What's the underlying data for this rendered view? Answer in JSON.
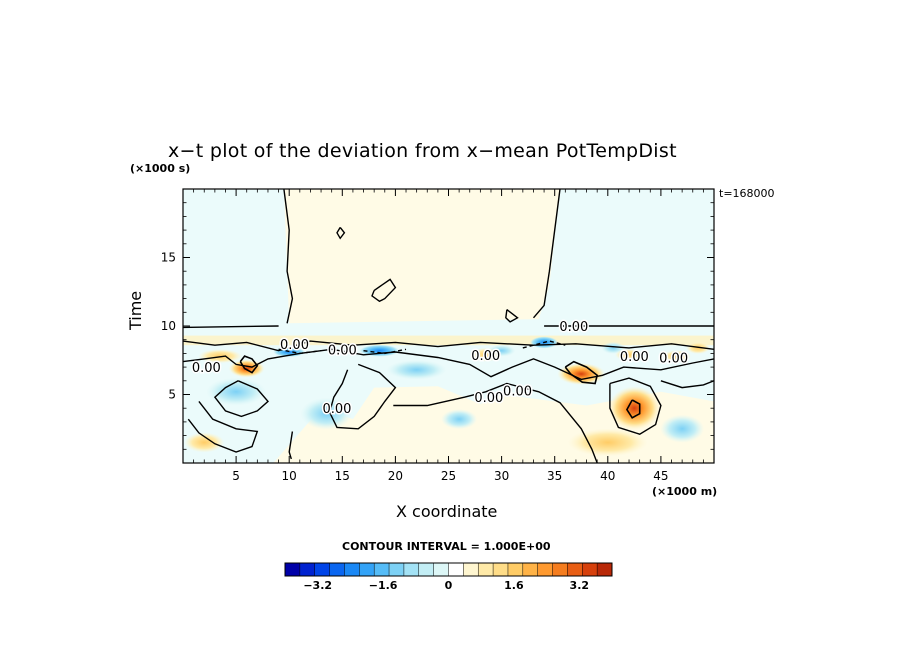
{
  "chart_data": {
    "type": "heatmap",
    "title": "x−t plot of the deviation from x−mean PotTempDist",
    "xlabel": "X coordinate",
    "ylabel": "Time",
    "x_unit": "(×1000 m)",
    "y_unit": "(×1000 s)",
    "time_stamp": "t=168000",
    "contour_interval": "CONTOUR INTERVAL = 1.000E+00",
    "xlim": [
      0,
      50
    ],
    "ylim": [
      0,
      20
    ],
    "x_ticks": [
      "5",
      "10",
      "15",
      "20",
      "25",
      "30",
      "35",
      "40",
      "45"
    ],
    "y_ticks": [
      "5",
      "10",
      "15"
    ],
    "colorbar_ticks": [
      "−3.2",
      "−1.6",
      "0",
      "1.6",
      "3.2"
    ],
    "colorbar_range": [
      -4.0,
      4.0
    ],
    "contour_labels": [
      {
        "text": "0.00",
        "x": 36.8,
        "y": 10.0
      },
      {
        "text": "0.00",
        "x": 10.5,
        "y": 8.7
      },
      {
        "text": "0.00",
        "x": 15.0,
        "y": 8.3
      },
      {
        "text": "0.00",
        "x": 2.2,
        "y": 7.0
      },
      {
        "text": "0.00",
        "x": 28.5,
        "y": 7.9
      },
      {
        "text": "0.00",
        "x": 42.5,
        "y": 7.8
      },
      {
        "text": "0.00",
        "x": 46.2,
        "y": 7.7
      },
      {
        "text": "0.00",
        "x": 31.5,
        "y": 5.3
      },
      {
        "text": "0.00",
        "x": 28.8,
        "y": 4.8
      },
      {
        "text": "0.00",
        "x": 14.5,
        "y": 4.0
      }
    ],
    "features": [
      {
        "kind": "positive-max",
        "x": 42.5,
        "y": 4.0,
        "value": 3.0
      },
      {
        "kind": "positive-max",
        "x": 37.5,
        "y": 6.5,
        "value": 3.5
      },
      {
        "kind": "positive-max",
        "x": 6.0,
        "y": 6.9,
        "value": 3.0
      },
      {
        "kind": "negative-min",
        "x": 18.5,
        "y": 8.2,
        "value": -1.6
      },
      {
        "kind": "negative-min",
        "x": 9.8,
        "y": 8.0,
        "value": -1.2
      }
    ]
  },
  "colors": {
    "colorbar": [
      "#0000a8",
      "#0022d0",
      "#0044e8",
      "#0a66f0",
      "#1a88f5",
      "#33a3f7",
      "#55bcf7",
      "#7dd1f5",
      "#a3e2f5",
      "#c3eef5",
      "#ddf7f7",
      "#ffffff",
      "#fff6d0",
      "#ffeaa8",
      "#ffdd88",
      "#ffcc66",
      "#ffb347",
      "#ff9a30",
      "#f57d1f",
      "#e85e14",
      "#d6400c",
      "#b82808"
    ],
    "background_field": "#ebfbfb",
    "warm_field": "#fffbe6"
  }
}
